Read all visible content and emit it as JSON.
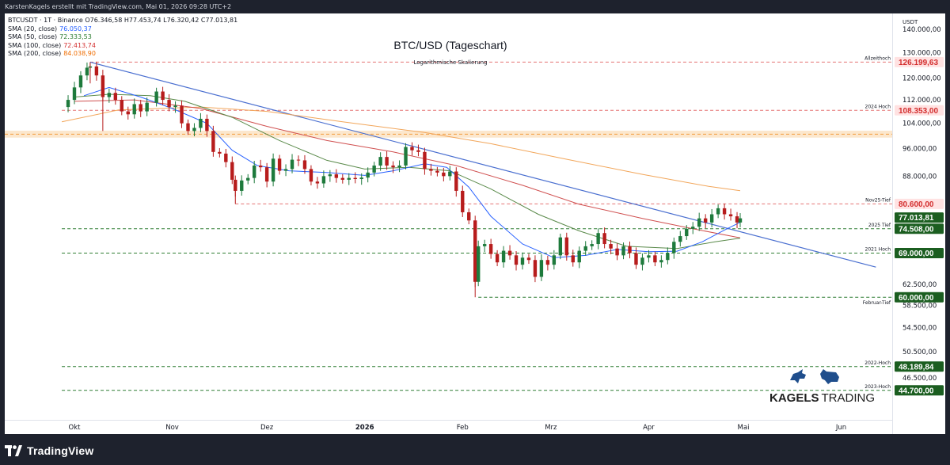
{
  "header": {
    "credit": "KarstenKagels erstellt mit TradingView.com, Mai 01, 2026 09:28 UTC+2"
  },
  "legend": {
    "symbol_line": "BTCUSDT · 1T · Binance  O76.346,58  H77.453,74  L76.320,42  C77.013,81",
    "indicators": [
      {
        "label": "SMA (20, close)",
        "value": "76.050,37",
        "color": "#2962ff"
      },
      {
        "label": "SMA (50, close)",
        "value": "72.333,53",
        "color": "#2e7d32"
      },
      {
        "label": "SMA (100, close)",
        "value": "72.413,74",
        "color": "#d32f2f"
      },
      {
        "label": "SMA (200, close)",
        "value": "84.038,90",
        "color": "#ef6c00"
      }
    ]
  },
  "brand": {
    "name_bold": "KAGELS",
    "name_light": "TRADING"
  },
  "footer": {
    "logo_text": "TradingView"
  },
  "colors": {
    "up": "#1e7a3c",
    "down": "#b71c1c",
    "sma20": "#2962ff",
    "sma50": "#5a8a4a",
    "sma100": "#d05050",
    "sma200": "#f2a65a",
    "trend": "#4a6fd0",
    "level_red": "#e57373",
    "level_green": "#2e7d32"
  },
  "chart_data": {
    "type": "candlestick",
    "title": "BTC/USD (Tageschart)",
    "subtitle": "Logarithmische Skalierung",
    "currency": "USDT",
    "y_scale": "log",
    "ylim": [
      42000,
      160000
    ],
    "x_range": [
      "2025-09-27",
      "2026-06-12"
    ],
    "grid": false,
    "y_ticks": [
      140000,
      130000,
      120000,
      112000,
      104000,
      96000,
      88000,
      80600,
      74508,
      69000,
      62500,
      58500,
      54500,
      50500,
      46500
    ],
    "y_tick_labels": [
      "140.000,00",
      "130.000,00",
      "120.000,00",
      "112.000,00",
      "104.000,00",
      "96.000,00",
      "88.000,00",
      "80.600,00",
      "74.508,00",
      "69.000,00",
      "62.500,00",
      "58.500,00",
      "54.500,00",
      "50.500,00",
      "46.500,00"
    ],
    "x_ticks": [
      {
        "date": "2025-10-01",
        "label": "Okt",
        "bold": false
      },
      {
        "date": "2025-11-01",
        "label": "Nov",
        "bold": false
      },
      {
        "date": "2025-12-01",
        "label": "Dez",
        "bold": false
      },
      {
        "date": "2026-01-01",
        "label": "2026",
        "bold": true
      },
      {
        "date": "2026-02-01",
        "label": "Feb",
        "bold": false
      },
      {
        "date": "2026-03-01",
        "label": "Mrz",
        "bold": false
      },
      {
        "date": "2026-04-01",
        "label": "Apr",
        "bold": false
      },
      {
        "date": "2026-05-01",
        "label": "Mai",
        "bold": false
      },
      {
        "date": "2026-06-01",
        "label": "Jun",
        "bold": false
      }
    ],
    "levels": [
      {
        "price": 126199.63,
        "label": "Allzeithoch",
        "badge": "126.199,63",
        "color": "red",
        "from": "2025-10-06"
      },
      {
        "price": 108353,
        "label": "2024 Hoch",
        "badge": "108.353,00",
        "color": "red",
        "from": "2025-09-27"
      },
      {
        "price": 80600,
        "label": "Nov25-Tief",
        "badge": "80.600,00",
        "color": "red",
        "from": "2025-11-21"
      },
      {
        "price": 74508,
        "label": "2025 Tief",
        "badge": "74.508,00",
        "color": "green",
        "from": "2025-09-27"
      },
      {
        "price": 69000,
        "label": "2021 Hoch",
        "badge": "69.000,00",
        "color": "green",
        "from": "2025-09-27"
      },
      {
        "price": 60000,
        "label": "Februar-Tief",
        "badge": "60.000,00",
        "color": "green",
        "from": "2026-02-06"
      },
      {
        "price": 48189.84,
        "label": "2022-Hoch",
        "badge": "48.189,84",
        "color": "green",
        "from": "2025-09-27"
      },
      {
        "price": 44700,
        "label": "2023-Hoch",
        "badge": "44.700,00",
        "color": "green",
        "from": "2025-09-27"
      }
    ],
    "current_price": {
      "price": 77013.81,
      "badge": "77.013,81"
    },
    "resistance_zone": [
      99400,
      101600
    ],
    "trendline": {
      "from_date": "2025-10-06",
      "from_price": 126199,
      "to_date": "2026-06-12",
      "to_price": 66000
    },
    "closes": [
      [
        "2025-09-27",
        109500
      ],
      [
        "2025-09-29",
        112000
      ],
      [
        "2025-10-01",
        116500
      ],
      [
        "2025-10-03",
        121000
      ],
      [
        "2025-10-05",
        124000
      ],
      [
        "2025-10-06",
        124500
      ],
      [
        "2025-10-08",
        121000
      ],
      [
        "2025-10-10",
        113000
      ],
      [
        "2025-10-12",
        114500
      ],
      [
        "2025-10-14",
        112000
      ],
      [
        "2025-10-16",
        108000
      ],
      [
        "2025-10-18",
        107000
      ],
      [
        "2025-10-20",
        110500
      ],
      [
        "2025-10-22",
        108000
      ],
      [
        "2025-10-24",
        111000
      ],
      [
        "2025-10-27",
        115000
      ],
      [
        "2025-10-29",
        112000
      ],
      [
        "2025-10-31",
        109500
      ],
      [
        "2025-11-02",
        110000
      ],
      [
        "2025-11-04",
        104000
      ],
      [
        "2025-11-06",
        101500
      ],
      [
        "2025-11-08",
        102500
      ],
      [
        "2025-11-10",
        105500
      ],
      [
        "2025-11-12",
        101500
      ],
      [
        "2025-11-14",
        95000
      ],
      [
        "2025-11-16",
        94500
      ],
      [
        "2025-11-18",
        92000
      ],
      [
        "2025-11-20",
        87000
      ],
      [
        "2025-11-21",
        84000
      ],
      [
        "2025-11-23",
        86800
      ],
      [
        "2025-11-25",
        87500
      ],
      [
        "2025-11-27",
        91000
      ],
      [
        "2025-11-29",
        90500
      ],
      [
        "2025-12-01",
        86500
      ],
      [
        "2025-12-03",
        93000
      ],
      [
        "2025-12-05",
        89500
      ],
      [
        "2025-12-07",
        90000
      ],
      [
        "2025-12-09",
        92700
      ],
      [
        "2025-12-11",
        92500
      ],
      [
        "2025-12-13",
        90000
      ],
      [
        "2025-12-15",
        86500
      ],
      [
        "2025-12-17",
        86000
      ],
      [
        "2025-12-19",
        88000
      ],
      [
        "2025-12-21",
        88500
      ],
      [
        "2025-12-23",
        87500
      ],
      [
        "2025-12-25",
        87000
      ],
      [
        "2025-12-27",
        87500
      ],
      [
        "2025-12-29",
        87200
      ],
      [
        "2025-12-31",
        87600
      ],
      [
        "2026-01-02",
        89000
      ],
      [
        "2026-01-04",
        91000
      ],
      [
        "2026-01-06",
        93500
      ],
      [
        "2026-01-08",
        91000
      ],
      [
        "2026-01-10",
        90500
      ],
      [
        "2026-01-12",
        91000
      ],
      [
        "2026-01-14",
        96500
      ],
      [
        "2026-01-16",
        95500
      ],
      [
        "2026-01-18",
        95000
      ],
      [
        "2026-01-20",
        90000
      ],
      [
        "2026-01-22",
        89500
      ],
      [
        "2026-01-24",
        89000
      ],
      [
        "2026-01-26",
        88000
      ],
      [
        "2026-01-28",
        89300
      ],
      [
        "2026-01-30",
        84000
      ],
      [
        "2026-02-01",
        78500
      ],
      [
        "2026-02-03",
        76500
      ],
      [
        "2026-02-05",
        63000
      ],
      [
        "2026-02-06",
        70500
      ],
      [
        "2026-02-08",
        71000
      ],
      [
        "2026-02-10",
        68800
      ],
      [
        "2026-02-12",
        67000
      ],
      [
        "2026-02-14",
        69500
      ],
      [
        "2026-02-16",
        68500
      ],
      [
        "2026-02-18",
        66500
      ],
      [
        "2026-02-20",
        68000
      ],
      [
        "2026-02-22",
        67500
      ],
      [
        "2026-02-24",
        64000
      ],
      [
        "2026-02-26",
        67500
      ],
      [
        "2026-02-28",
        66500
      ],
      [
        "2026-03-02",
        68500
      ],
      [
        "2026-03-04",
        72500
      ],
      [
        "2026-03-06",
        68500
      ],
      [
        "2026-03-08",
        67000
      ],
      [
        "2026-03-10",
        69500
      ],
      [
        "2026-03-12",
        70500
      ],
      [
        "2026-03-14",
        71000
      ],
      [
        "2026-03-16",
        73500
      ],
      [
        "2026-03-18",
        71000
      ],
      [
        "2026-03-20",
        70000
      ],
      [
        "2026-03-22",
        68500
      ],
      [
        "2026-03-24",
        70500
      ],
      [
        "2026-03-26",
        69000
      ],
      [
        "2026-03-28",
        66500
      ],
      [
        "2026-03-30",
        68000
      ],
      [
        "2026-04-01",
        68500
      ],
      [
        "2026-04-03",
        67000
      ],
      [
        "2026-04-05",
        67500
      ],
      [
        "2026-04-07",
        69000
      ],
      [
        "2026-04-09",
        71500
      ],
      [
        "2026-04-11",
        72800
      ],
      [
        "2026-04-13",
        74500
      ],
      [
        "2026-04-15",
        75000
      ],
      [
        "2026-04-17",
        77000
      ],
      [
        "2026-04-19",
        76000
      ],
      [
        "2026-04-21",
        78000
      ],
      [
        "2026-04-23",
        79500
      ],
      [
        "2026-04-25",
        78000
      ],
      [
        "2026-04-27",
        77500
      ],
      [
        "2026-04-29",
        76000
      ],
      [
        "2026-04-30",
        77013
      ]
    ],
    "sma20": [
      [
        "2025-10-04",
        113500
      ],
      [
        "2025-10-12",
        116500
      ],
      [
        "2025-10-22",
        113000
      ],
      [
        "2025-11-01",
        109000
      ],
      [
        "2025-11-12",
        104000
      ],
      [
        "2025-11-20",
        95500
      ],
      [
        "2025-11-28",
        91000
      ],
      [
        "2025-12-08",
        89500
      ],
      [
        "2025-12-20",
        89000
      ],
      [
        "2026-01-01",
        88200
      ],
      [
        "2026-01-10",
        89500
      ],
      [
        "2026-01-20",
        91500
      ],
      [
        "2026-01-27",
        90500
      ],
      [
        "2026-02-03",
        85000
      ],
      [
        "2026-02-10",
        77500
      ],
      [
        "2026-02-20",
        71000
      ],
      [
        "2026-03-02",
        68000
      ],
      [
        "2026-03-12",
        68500
      ],
      [
        "2026-03-22",
        69800
      ],
      [
        "2026-04-01",
        69300
      ],
      [
        "2026-04-10",
        69400
      ],
      [
        "2026-04-18",
        71500
      ],
      [
        "2026-04-25",
        74200
      ],
      [
        "2026-04-30",
        76050
      ]
    ],
    "sma50": [
      [
        "2025-10-01",
        113000
      ],
      [
        "2025-10-12",
        114000
      ],
      [
        "2025-10-25",
        113500
      ],
      [
        "2025-11-05",
        111500
      ],
      [
        "2025-11-20",
        106000
      ],
      [
        "2025-12-05",
        98500
      ],
      [
        "2025-12-20",
        92500
      ],
      [
        "2026-01-01",
        90000
      ],
      [
        "2026-01-15",
        90500
      ],
      [
        "2026-01-28",
        89500
      ],
      [
        "2026-02-10",
        84500
      ],
      [
        "2026-02-25",
        78000
      ],
      [
        "2026-03-10",
        74000
      ],
      [
        "2026-03-25",
        70500
      ],
      [
        "2026-04-10",
        70000
      ],
      [
        "2026-04-22",
        71500
      ],
      [
        "2026-04-30",
        72333
      ]
    ],
    "sma100": [
      [
        "2025-10-01",
        111500
      ],
      [
        "2025-10-20",
        112000
      ],
      [
        "2025-11-10",
        109000
      ],
      [
        "2025-12-01",
        103000
      ],
      [
        "2025-12-20",
        98500
      ],
      [
        "2026-01-10",
        95000
      ],
      [
        "2026-01-30",
        91000
      ],
      [
        "2026-02-20",
        85500
      ],
      [
        "2026-03-10",
        80500
      ],
      [
        "2026-03-30",
        77000
      ],
      [
        "2026-04-15",
        74500
      ],
      [
        "2026-04-30",
        72414
      ]
    ],
    "sma200": [
      [
        "2025-09-27",
        104500
      ],
      [
        "2025-10-15",
        108500
      ],
      [
        "2025-11-10",
        109500
      ],
      [
        "2025-12-01",
        108000
      ],
      [
        "2025-12-25",
        104500
      ],
      [
        "2026-01-20",
        101000
      ],
      [
        "2026-02-10",
        97500
      ],
      [
        "2026-03-05",
        93000
      ],
      [
        "2026-03-30",
        88500
      ],
      [
        "2026-04-20",
        85200
      ],
      [
        "2026-04-30",
        84039
      ]
    ]
  }
}
